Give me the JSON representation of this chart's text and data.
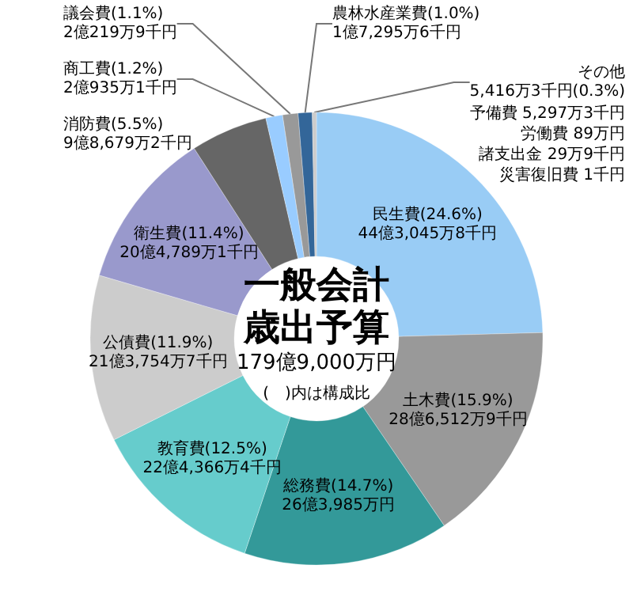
{
  "chart_data": {
    "type": "donut",
    "title": "一般会計歳出予算",
    "subtitle": "179億9,000万円",
    "annotations": [
      "予備費 5,297万3千円",
      "労働費 89万円",
      "諸支出金 29万9千円",
      "災害復旧費 1千円",
      "(　)内は構成比"
    ],
    "categories": [
      "民生費",
      "土木費",
      "総務費",
      "教育費",
      "公債費",
      "衛生費",
      "消防費",
      "商工費",
      "議会費",
      "農林水産業費",
      "その他"
    ],
    "values": [
      24.6,
      15.9,
      14.7,
      12.5,
      11.9,
      11.4,
      5.5,
      1.2,
      1.1,
      1.0,
      0.3
    ],
    "colors": [
      "#99ccf5",
      "#999999",
      "#339999",
      "#66cccc",
      "#cccccc",
      "#9999cc",
      "#666666",
      "#99ccff",
      "#999999",
      "#336699",
      "#cccccc"
    ],
    "value_labels": [
      "(24.6%)\n44億3,045万8千円",
      "(15.9%)\n28億6,512万9千円",
      "(14.7%)\n26億3,985万円",
      "(12.5%)\n22億4,366万4千円",
      "(11.9%)\n21億3,754万7千円",
      "(11.4%)\n20億4,789万1千円",
      "(5.5%)\n9億8,679万2千円",
      "(1.2%)\n2億935万1千円",
      "(1.1%)\n2億219万9千円",
      "(1.0%)\n1億7,295万6千円",
      "\n5,416万3千円(0.3%)"
    ],
    "legend": false
  }
}
